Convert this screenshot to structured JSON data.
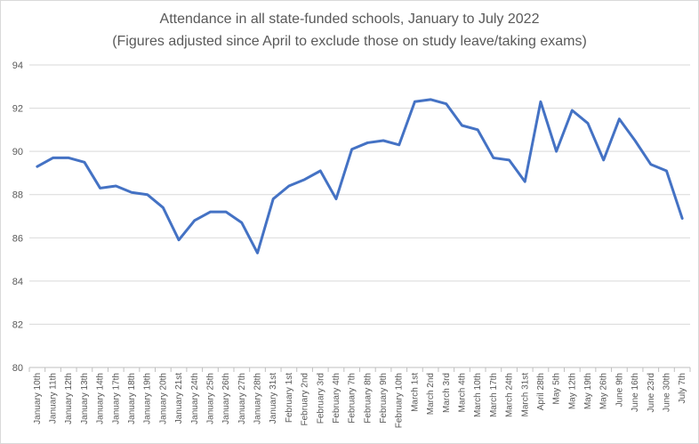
{
  "chart_data": {
    "type": "line",
    "title": "Attendance in all state-funded schools, January to July 2022",
    "subtitle": "(Figures adjusted since April to exclude those on study leave/taking exams)",
    "xlabel": "",
    "ylabel": "",
    "ylim": [
      80,
      94
    ],
    "yticks": [
      80,
      82,
      84,
      86,
      88,
      90,
      92,
      94
    ],
    "grid": true,
    "legend": "none",
    "line_color": "#4472C4",
    "categories": [
      "January 10th",
      "January 11th",
      "January 12th",
      "January 13th",
      "January 14th",
      "January 17th",
      "January 18th",
      "January 19th",
      "January 20th",
      "January 21st",
      "January 24th",
      "January 25th",
      "January 26th",
      "January 27th",
      "January 28th",
      "January 31st",
      "February 1st",
      "February 2nd",
      "February 3rd",
      "February 4th",
      "February 7th",
      "February 8th",
      "February 9th",
      "February 10th",
      "March 1st",
      "March 2nd",
      "March 3rd",
      "March 4th",
      "March 10th",
      "March 17th",
      "March 24th",
      "March 31st",
      "April 28th",
      "May 5th",
      "May 12th",
      "May 19th",
      "May 26th",
      "June 9th",
      "June 16th",
      "June 23rd",
      "June 30th",
      "July 7th"
    ],
    "series": [
      {
        "values": [
          89.3,
          89.7,
          89.7,
          89.5,
          88.3,
          88.4,
          88.1,
          88.0,
          87.4,
          85.9,
          86.8,
          87.2,
          87.2,
          86.7,
          85.3,
          87.8,
          88.4,
          88.7,
          89.1,
          87.8,
          90.1,
          90.4,
          90.5,
          90.3,
          92.3,
          92.4,
          92.2,
          91.2,
          91.0,
          89.7,
          89.6,
          88.6,
          92.3,
          90.0,
          91.9,
          91.3,
          89.6,
          91.5,
          90.5,
          89.4,
          89.1,
          86.9
        ]
      }
    ]
  }
}
